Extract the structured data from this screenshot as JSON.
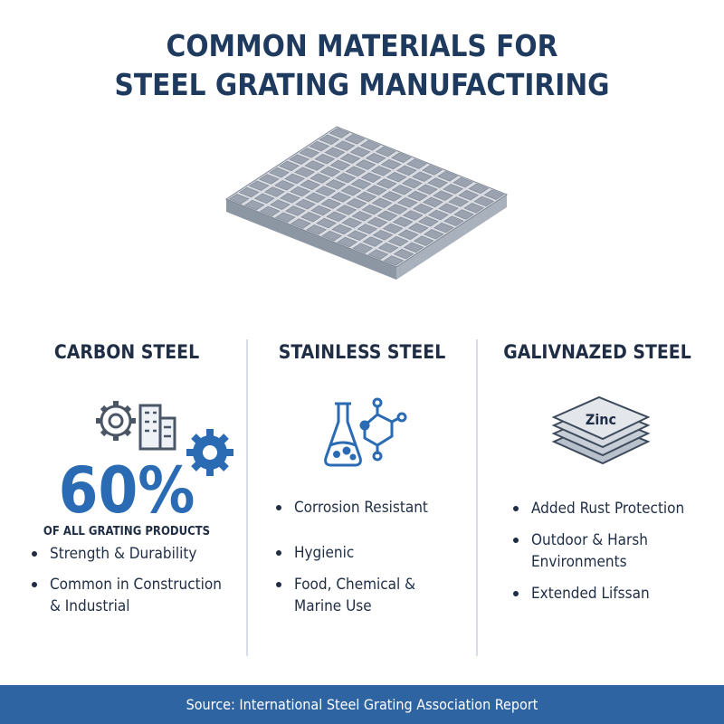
{
  "header": {
    "title": [
      "COMMON MATERIALS FOR",
      "STEEL GRATING MANUFACTIRING"
    ]
  },
  "columns": [
    {
      "title": "CARBON STEEL",
      "stat": "60%",
      "stat_caption": "OF ALL GRATING PRODUCTS",
      "bullets": [
        [
          "Strength & Durability"
        ],
        [
          "Common in Construction",
          "& Industrial"
        ]
      ]
    },
    {
      "title": "STAINLESS STEEL",
      "bullets": [
        [
          "Corrosion Resistant"
        ],
        [
          "Hygienic"
        ],
        [
          "Food, Chemical &",
          "Marine Use"
        ]
      ]
    },
    {
      "title": "GALIVNAZED STEEL",
      "icon_label": "Zinc",
      "bullets": [
        [
          "Added Rust Protection"
        ],
        [
          "Outdoor & Harsh",
          "Environments"
        ],
        [
          "Extended Lifssan"
        ]
      ]
    }
  ],
  "footer": {
    "source": "Source: International Steel Grating Association Report"
  }
}
